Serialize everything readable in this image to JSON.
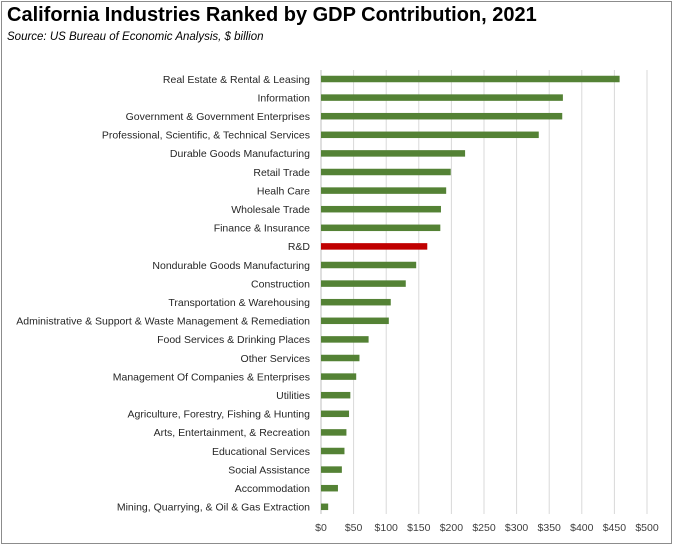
{
  "chart_data": {
    "type": "bar",
    "orientation": "horizontal",
    "title": "California Industries Ranked by GDP Contribution, 2021",
    "subtitle": "Source:  US Bureau of Economic Analysis, $ billion",
    "categories": [
      "Real Estate & Rental & Leasing",
      "Information",
      "Government & Government Enterprises",
      "Professional, Scientific, & Technical Services",
      "Durable Goods Manufacturing",
      "Retail Trade",
      "Healh Care",
      "Wholesale Trade",
      "Finance & Insurance",
      "R&D",
      "Nondurable Goods Manufacturing",
      "Construction",
      "Transportation & Warehousing",
      "Administrative & Support & Waste Management & Remediation",
      "Food Services & Drinking Places",
      "Other Services",
      "Management Of Companies & Enterprises",
      "Utilities",
      "Agriculture, Forestry, Fishing & Hunting",
      "Arts, Entertainment, & Recreation",
      "Educational Services",
      "Social Assistance",
      "Accommodation",
      "Mining, Quarrying, & Oil & Gas Extraction"
    ],
    "values": [
      458,
      371,
      370,
      334,
      221,
      199,
      192,
      184,
      183,
      163,
      146,
      130,
      107,
      104,
      73,
      59,
      54,
      45,
      43,
      39,
      36,
      32,
      26,
      11
    ],
    "highlight_category": "R&D",
    "colors": {
      "default": "#548235",
      "highlight": "#c00000",
      "grid": "#d9d9d9"
    },
    "xlim": [
      0,
      500
    ],
    "xticks": [
      "$0",
      "$50",
      "$100",
      "$150",
      "$200",
      "$250",
      "$300",
      "$350",
      "$400",
      "$450",
      "$500"
    ],
    "grid": true,
    "legend": "none"
  }
}
